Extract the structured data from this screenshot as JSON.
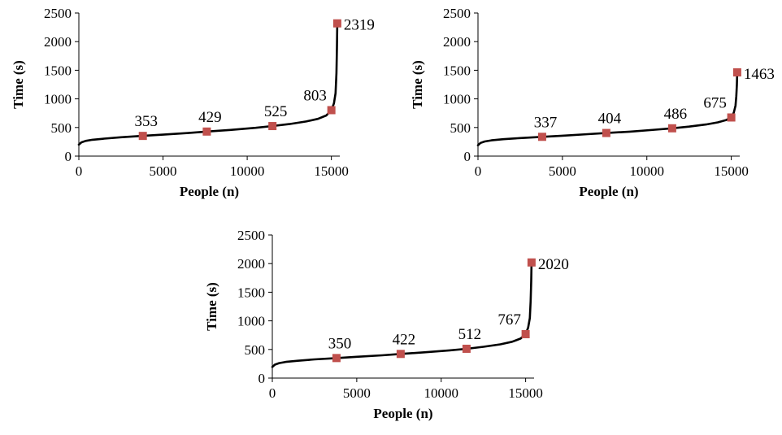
{
  "chart_data": [
    {
      "type": "scatter",
      "xlabel": "People (n)",
      "ylabel": "Time (s)",
      "xlim": [
        0,
        15500
      ],
      "ylim": [
        0,
        2500
      ],
      "xticks": [
        0,
        5000,
        10000,
        15000
      ],
      "yticks": [
        0,
        500,
        1000,
        1500,
        2000,
        2500
      ],
      "curve": {
        "x": [
          0,
          150,
          400,
          800,
          1500,
          2500,
          3800,
          5000,
          6500,
          7600,
          9000,
          10500,
          11500,
          12500,
          13500,
          14200,
          14700,
          15000,
          15150,
          15250,
          15300,
          15330,
          15350
        ],
        "y": [
          200,
          240,
          265,
          285,
          305,
          330,
          353,
          375,
          403,
          429,
          458,
          495,
          525,
          560,
          605,
          650,
          710,
          803,
          920,
          1100,
          1450,
          1900,
          2319
        ]
      },
      "points": [
        {
          "x": 3800,
          "y": 353,
          "label": "353"
        },
        {
          "x": 7600,
          "y": 429,
          "label": "429"
        },
        {
          "x": 11500,
          "y": 525,
          "label": "525"
        },
        {
          "x": 15000,
          "y": 803,
          "label": "803"
        },
        {
          "x": 15350,
          "y": 2319,
          "label": "2319"
        }
      ],
      "grid": false,
      "legend": "none"
    },
    {
      "type": "scatter",
      "xlabel": "People (n)",
      "ylabel": "Time (s)",
      "xlim": [
        0,
        15500
      ],
      "ylim": [
        0,
        2500
      ],
      "xticks": [
        0,
        5000,
        10000,
        15000
      ],
      "yticks": [
        0,
        500,
        1000,
        1500,
        2000,
        2500
      ],
      "curve": {
        "x": [
          0,
          150,
          400,
          800,
          1500,
          2500,
          3800,
          5000,
          6500,
          7600,
          9000,
          10500,
          11500,
          12500,
          13500,
          14200,
          14700,
          15000,
          15150,
          15250,
          15300,
          15330,
          15350
        ],
        "y": [
          190,
          230,
          255,
          275,
          295,
          315,
          337,
          357,
          383,
          404,
          428,
          462,
          486,
          515,
          553,
          590,
          630,
          675,
          760,
          880,
          1050,
          1250,
          1463
        ]
      },
      "points": [
        {
          "x": 3800,
          "y": 337,
          "label": "337"
        },
        {
          "x": 7600,
          "y": 404,
          "label": "404"
        },
        {
          "x": 11500,
          "y": 486,
          "label": "486"
        },
        {
          "x": 15000,
          "y": 675,
          "label": "675"
        },
        {
          "x": 15350,
          "y": 1463,
          "label": "1463"
        }
      ],
      "grid": false,
      "legend": "none"
    },
    {
      "type": "scatter",
      "xlabel": "People (n)",
      "ylabel": "Time (s)",
      "xlim": [
        0,
        15500
      ],
      "ylim": [
        0,
        2500
      ],
      "xticks": [
        0,
        5000,
        10000,
        15000
      ],
      "yticks": [
        0,
        500,
        1000,
        1500,
        2000,
        2500
      ],
      "curve": {
        "x": [
          0,
          150,
          400,
          800,
          1500,
          2500,
          3800,
          5000,
          6500,
          7600,
          9000,
          10500,
          11500,
          12500,
          13500,
          14200,
          14700,
          15000,
          15150,
          15250,
          15300,
          15330,
          15350
        ],
        "y": [
          195,
          235,
          262,
          282,
          302,
          327,
          350,
          372,
          398,
          422,
          450,
          485,
          512,
          547,
          590,
          635,
          690,
          767,
          880,
          1050,
          1350,
          1700,
          2020
        ]
      },
      "points": [
        {
          "x": 3800,
          "y": 350,
          "label": "350"
        },
        {
          "x": 7600,
          "y": 422,
          "label": "422"
        },
        {
          "x": 11500,
          "y": 512,
          "label": "512"
        },
        {
          "x": 15000,
          "y": 767,
          "label": "767"
        },
        {
          "x": 15350,
          "y": 2020,
          "label": "2020"
        }
      ],
      "grid": false,
      "legend": "none"
    }
  ]
}
